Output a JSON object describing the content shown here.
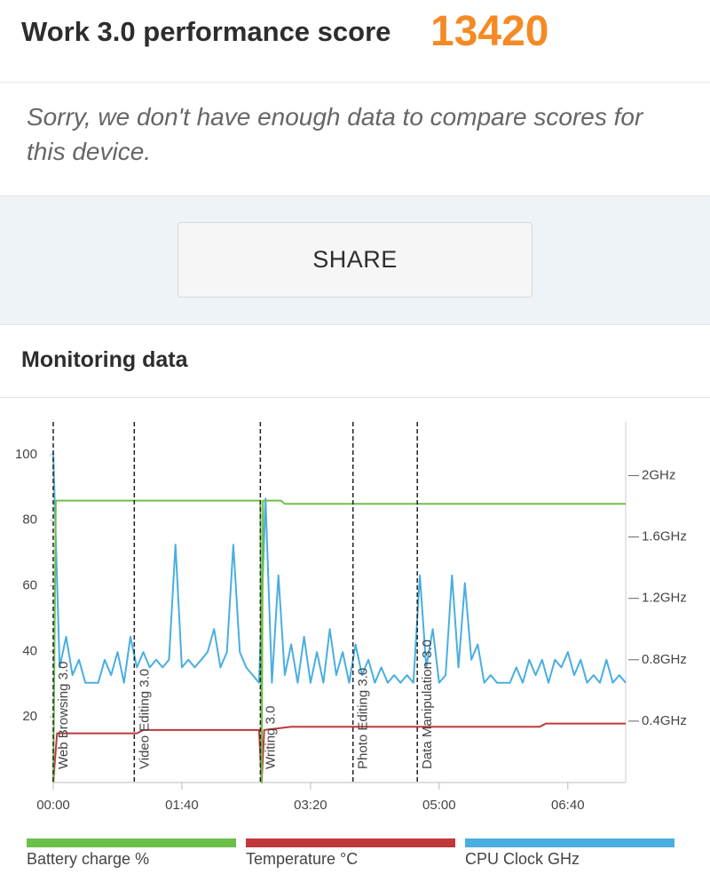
{
  "header": {
    "title": "Work 3.0 performance score",
    "score": "13420"
  },
  "message": "Sorry, we don't have enough data to compare scores for this device.",
  "share_button": "SHARE",
  "monitoring": {
    "title": "Monitoring data"
  },
  "chart_data": {
    "type": "line",
    "xlim": [
      0,
      445
    ],
    "xticks": [
      {
        "value": 0,
        "label": "00:00"
      },
      {
        "value": 100,
        "label": "01:40"
      },
      {
        "value": 200,
        "label": "03:20"
      },
      {
        "value": 300,
        "label": "05:00"
      },
      {
        "value": 400,
        "label": "06:40"
      }
    ],
    "ylim": [
      0,
      110
    ],
    "yticks": [
      20,
      40,
      60,
      80,
      100
    ],
    "y2lim": [
      0,
      2.35
    ],
    "y2ticks": [
      {
        "value": 0.4,
        "label": "0.4GHz"
      },
      {
        "value": 0.8,
        "label": "0.8GHz"
      },
      {
        "value": 1.2,
        "label": "1.2GHz"
      },
      {
        "value": 1.6,
        "label": "1.6GHz"
      },
      {
        "value": 2,
        "label": "2GHz"
      }
    ],
    "grid": false,
    "legend": "bottom",
    "markers": [
      {
        "x": 0,
        "label": "Web Browsing 3.0"
      },
      {
        "x": 63,
        "label": "Video Editing 3.0"
      },
      {
        "x": 161,
        "label": "Writing 3.0"
      },
      {
        "x": 233,
        "label": "Photo Editing 3.0"
      },
      {
        "x": 283,
        "label": "Data Manipulation 3.0"
      }
    ],
    "series": [
      {
        "name": "Battery charge %",
        "color": "#6cc04a",
        "x": [
          0,
          2,
          161,
          162,
          163,
          177,
          180,
          445
        ],
        "values": [
          0,
          86,
          86,
          0,
          86,
          86,
          85,
          85
        ]
      },
      {
        "name": "Temperature °C",
        "color": "#c0393b",
        "x": [
          0,
          3,
          65,
          70,
          160,
          162,
          164,
          185,
          378,
          383,
          445
        ],
        "values": [
          0,
          15,
          15,
          16,
          16,
          0,
          16,
          17,
          17,
          18,
          18
        ]
      },
      {
        "name": "CPU Clock GHz",
        "color": "#4aaee0",
        "axis": "y2",
        "x": [
          0,
          5,
          10,
          15,
          20,
          25,
          30,
          35,
          40,
          45,
          50,
          55,
          60,
          65,
          70,
          75,
          80,
          85,
          90,
          95,
          100,
          105,
          110,
          115,
          120,
          125,
          130,
          135,
          140,
          145,
          150,
          155,
          160,
          165,
          170,
          175,
          180,
          185,
          190,
          195,
          200,
          205,
          210,
          215,
          220,
          225,
          230,
          235,
          240,
          245,
          250,
          255,
          260,
          265,
          270,
          275,
          280,
          285,
          290,
          295,
          300,
          305,
          310,
          315,
          320,
          325,
          330,
          335,
          340,
          345,
          350,
          355,
          360,
          365,
          370,
          375,
          380,
          385,
          390,
          395,
          400,
          405,
          410,
          415,
          420,
          425,
          430,
          435,
          440,
          445
        ],
        "values": [
          2.15,
          0.75,
          0.95,
          0.7,
          0.8,
          0.65,
          0.65,
          0.65,
          0.8,
          0.7,
          0.85,
          0.65,
          0.95,
          0.75,
          0.85,
          0.75,
          0.8,
          0.75,
          0.8,
          1.55,
          0.75,
          0.8,
          0.75,
          0.8,
          0.85,
          1.0,
          0.75,
          0.85,
          1.55,
          0.85,
          0.75,
          0.7,
          0.65,
          1.85,
          0.65,
          1.35,
          0.7,
          0.9,
          0.65,
          0.95,
          0.65,
          0.85,
          0.65,
          1.0,
          0.7,
          0.85,
          0.65,
          0.9,
          0.7,
          0.8,
          0.65,
          0.75,
          0.65,
          0.7,
          0.65,
          0.7,
          0.65,
          1.35,
          0.75,
          1.0,
          0.65,
          0.7,
          1.35,
          0.75,
          1.3,
          0.8,
          0.9,
          0.65,
          0.7,
          0.65,
          0.65,
          0.65,
          0.75,
          0.65,
          0.8,
          0.7,
          0.8,
          0.65,
          0.8,
          0.75,
          0.85,
          0.7,
          0.8,
          0.65,
          0.7,
          0.65,
          0.8,
          0.65,
          0.7,
          0.65
        ]
      }
    ]
  }
}
